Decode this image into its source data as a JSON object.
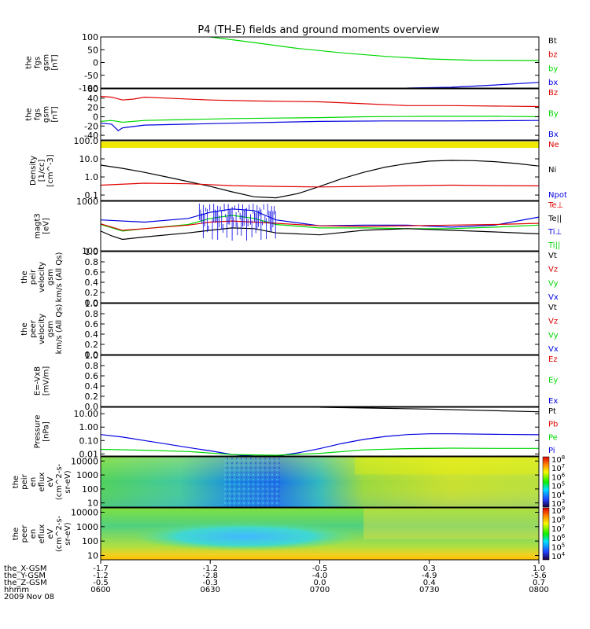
{
  "title": "P4 (TH-E) fields and ground moments overview",
  "colors": {
    "black": "#000000",
    "red": "#e00000",
    "green": "#00d800",
    "blue": "#0000e0",
    "yellow": "#f0e800",
    "bright_green": "#00ff00"
  },
  "chart_data": [
    {
      "type": "line",
      "panel": "fgs_gsm_1",
      "ylabel_lines": [
        "the",
        "fgs",
        "gsm",
        "[nT]"
      ],
      "ylim": [
        -100,
        100
      ],
      "yticks": [
        "100",
        "50",
        "0",
        "-50",
        "-100"
      ],
      "legend": [
        "Bt",
        "bz",
        "by",
        "bx"
      ],
      "x_hours": [
        6.0,
        6.5,
        7.0,
        7.5,
        8.0
      ],
      "series": [
        {
          "name": "by",
          "color": "green",
          "x": [
            6.5,
            6.7,
            6.9,
            7.1,
            7.3,
            7.5,
            7.7,
            8.0
          ],
          "y": [
            100,
            78,
            55,
            38,
            24,
            14,
            9,
            8
          ]
        },
        {
          "name": "bx",
          "color": "blue",
          "x": [
            7.4,
            7.6,
            7.8,
            8.0
          ],
          "y": [
            -100,
            -97,
            -88,
            -78
          ]
        }
      ]
    },
    {
      "type": "line",
      "panel": "fgs_gsm_2",
      "ylabel_lines": [
        "the",
        "fgs",
        "gsm",
        "[nT]"
      ],
      "ylim": [
        -50,
        60
      ],
      "yticks": [
        "60",
        "40",
        "20",
        "0",
        "-20",
        "-40"
      ],
      "legend": [
        "Bz",
        "By",
        "Bx"
      ],
      "series": [
        {
          "name": "Bz",
          "color": "red",
          "x": [
            6.0,
            6.05,
            6.1,
            6.15,
            6.2,
            6.3,
            6.5,
            6.7,
            7.0,
            7.2,
            7.4,
            7.6,
            8.0
          ],
          "y": [
            44,
            42,
            36,
            38,
            42,
            40,
            36,
            34,
            32,
            28,
            24,
            24,
            22
          ]
        },
        {
          "name": "By",
          "color": "green",
          "x": [
            6.0,
            6.05,
            6.1,
            6.2,
            6.4,
            6.6,
            6.8,
            7.0,
            7.2,
            7.5,
            7.8,
            8.0
          ],
          "y": [
            -10,
            -8,
            -12,
            -8,
            -6,
            -4,
            -3,
            -2,
            0,
            1,
            1,
            0
          ]
        },
        {
          "name": "Bx",
          "color": "blue",
          "x": [
            6.0,
            6.05,
            6.08,
            6.1,
            6.2,
            6.4,
            6.6,
            6.8,
            7.0,
            7.3,
            7.6,
            8.0
          ],
          "y": [
            -14,
            -16,
            -30,
            -24,
            -18,
            -16,
            -14,
            -12,
            -10,
            -9,
            -9,
            -8
          ]
        }
      ]
    },
    {
      "type": "line",
      "panel": "density",
      "ylabel_lines": [
        "Density",
        "[1/cc]",
        "[cm^-3]"
      ],
      "log": true,
      "ylim": [
        0.05,
        100
      ],
      "yticks": [
        "100.0",
        "10.0",
        "1.0",
        "0.1"
      ],
      "legend": [
        "Ne",
        "Ni",
        "Npot"
      ],
      "series": [
        {
          "name": "Ni",
          "color": "black",
          "x": [
            6.0,
            6.1,
            6.2,
            6.3,
            6.4,
            6.5,
            6.6,
            6.7,
            6.8,
            6.9,
            7.0,
            7.1,
            7.2,
            7.3,
            7.4,
            7.5,
            7.6,
            7.7,
            7.8,
            7.9,
            8.0
          ],
          "y": [
            4.5,
            3.0,
            1.8,
            1.0,
            0.55,
            0.3,
            0.15,
            0.08,
            0.07,
            0.12,
            0.3,
            0.8,
            1.8,
            3.5,
            5.5,
            7.5,
            8.2,
            8.0,
            7.0,
            5.5,
            4.0
          ]
        },
        {
          "name": "Ne",
          "color": "red",
          "x": [
            6.0,
            6.2,
            6.4,
            6.6,
            6.8,
            7.0,
            7.2,
            7.4,
            7.6,
            7.8,
            8.0
          ],
          "y": [
            0.35,
            0.45,
            0.42,
            0.33,
            0.3,
            0.28,
            0.3,
            0.33,
            0.35,
            0.33,
            0.32
          ]
        }
      ]
    },
    {
      "type": "line",
      "panel": "temperature",
      "ylabel_lines": [
        "magt3",
        "[eV]"
      ],
      "log": true,
      "ylim": [
        100,
        1000
      ],
      "yticks": [
        "1000",
        "100"
      ],
      "legend": [
        "Te⊥",
        "Te||",
        "Ti⊥",
        "Ti||"
      ],
      "series": [
        {
          "name": "Ti⊥",
          "color": "blue",
          "x": [
            6.0,
            6.2,
            6.4,
            6.5,
            6.6,
            6.7,
            6.8,
            7.0,
            7.2,
            7.4,
            7.6,
            7.8,
            8.0
          ],
          "y": [
            420,
            380,
            450,
            600,
            700,
            650,
            420,
            320,
            330,
            330,
            300,
            330,
            480
          ]
        },
        {
          "name": "Ti||",
          "color": "green",
          "x": [
            6.0,
            6.1,
            6.2,
            6.4,
            6.5,
            6.6,
            6.7,
            6.8,
            7.0,
            7.2,
            7.4,
            7.6,
            7.8,
            8.0
          ],
          "y": [
            340,
            250,
            280,
            340,
            450,
            520,
            450,
            340,
            290,
            290,
            280,
            280,
            300,
            330
          ]
        },
        {
          "name": "Te⊥",
          "color": "red",
          "x": [
            6.0,
            6.1,
            6.2,
            6.4,
            6.5,
            6.6,
            6.7,
            6.8,
            7.0,
            7.2,
            7.4,
            7.6,
            7.8,
            8.0
          ],
          "y": [
            350,
            260,
            280,
            330,
            380,
            400,
            380,
            360,
            320,
            310,
            320,
            330,
            340,
            360
          ]
        },
        {
          "name": "Te||",
          "color": "black",
          "x": [
            6.0,
            6.05,
            6.1,
            6.2,
            6.4,
            6.5,
            6.6,
            6.7,
            6.8,
            7.0,
            7.2,
            7.4,
            7.6,
            7.8,
            8.0
          ],
          "y": [
            250,
            200,
            170,
            190,
            230,
            260,
            290,
            280,
            230,
            210,
            260,
            280,
            260,
            240,
            220
          ]
        }
      ]
    },
    {
      "type": "line",
      "panel": "peir_velocity",
      "ylabel_lines": [
        "the",
        "peir",
        "velocity",
        "gsm",
        "km/s (All Qs)"
      ],
      "ylim": [
        0,
        1
      ],
      "yticks": [
        "1.0",
        "0.8",
        "0.6",
        "0.4",
        "0.2",
        "0.0"
      ],
      "legend": [
        "Vt",
        "Vz",
        "Vy",
        "Vx"
      ],
      "series": []
    },
    {
      "type": "line",
      "panel": "peer_velocity",
      "ylabel_lines": [
        "the",
        "peer",
        "velocity",
        "gsm",
        "km/s (All Qs)"
      ],
      "ylim": [
        0,
        1
      ],
      "yticks": [
        "1.0",
        "0.8",
        "0.6",
        "0.4",
        "0.2",
        "0.0"
      ],
      "legend": [
        "Vt",
        "Vz",
        "Vy",
        "Vx"
      ],
      "series": []
    },
    {
      "type": "line",
      "panel": "efield",
      "ylabel_lines": [
        "E=-VxB",
        "[mV/m]"
      ],
      "ylim": [
        0,
        1
      ],
      "yticks": [
        "1.0",
        "0.8",
        "0.6",
        "0.4",
        "0.2",
        "0.0"
      ],
      "legend": [
        "Ez",
        "Ey",
        "Ex"
      ],
      "series": []
    },
    {
      "type": "line",
      "panel": "pressure",
      "ylabel_lines": [
        "Pressure",
        "[nPa]"
      ],
      "log": true,
      "ylim": [
        0.007,
        30
      ],
      "yticks": [
        "10.00",
        "1.00",
        "0.10",
        "0.01"
      ],
      "legend": [
        "Pt",
        "Pb",
        "Pe",
        "Pi"
      ],
      "series": [
        {
          "name": "Pt",
          "color": "black",
          "x": [
            7.0,
            7.5,
            8.0
          ],
          "y": [
            30,
            22,
            14
          ]
        },
        {
          "name": "Pi",
          "color": "blue",
          "x": [
            6.0,
            6.1,
            6.2,
            6.3,
            6.4,
            6.5,
            6.6,
            6.7,
            6.8,
            6.9,
            7.0,
            7.1,
            7.2,
            7.3,
            7.4,
            7.5,
            7.6,
            7.8,
            8.0
          ],
          "y": [
            0.28,
            0.18,
            0.1,
            0.055,
            0.03,
            0.017,
            0.009,
            0.006,
            0.007,
            0.012,
            0.025,
            0.06,
            0.12,
            0.2,
            0.28,
            0.32,
            0.32,
            0.29,
            0.27
          ]
        },
        {
          "name": "Pe",
          "color": "green",
          "x": [
            6.0,
            6.2,
            6.4,
            6.6,
            6.8,
            7.0,
            7.2,
            7.4,
            7.6,
            7.8,
            8.0
          ],
          "y": [
            0.022,
            0.019,
            0.015,
            0.009,
            0.008,
            0.011,
            0.02,
            0.025,
            0.027,
            0.026,
            0.026
          ]
        }
      ]
    },
    {
      "type": "heatmap",
      "panel": "peir_en_eflux",
      "ylabel_lines": [
        "the",
        "peir",
        "en",
        "eflux",
        "eV",
        "(cm^2-s-",
        "sr-eV)"
      ],
      "log": true,
      "ylim": [
        5,
        20000
      ],
      "yticks": [
        "10000",
        "1000",
        "100",
        "10"
      ],
      "colorbar": {
        "ticks": [
          "10^8",
          "10^7",
          "10^6",
          "10^5",
          "10^4",
          "10^3"
        ]
      }
    },
    {
      "type": "heatmap",
      "panel": "peer_en_eflux",
      "ylabel_lines": [
        "the",
        "peer",
        "en",
        "eflux",
        "eV",
        "(cm^2-s-",
        "sr-eV)"
      ],
      "log": true,
      "ylim": [
        5,
        20000
      ],
      "yticks": [
        "10000",
        "1000",
        "100",
        "10"
      ],
      "colorbar": {
        "ticks": [
          "10^9",
          "10^8",
          "10^7",
          "10^6",
          "10^5",
          "10^4"
        ]
      }
    }
  ],
  "xaxis": {
    "row_labels": [
      "the_X-GSM",
      "the_Y-GSM",
      "the_Z-GSM",
      "hhmm",
      "2009 Nov 08"
    ],
    "columns": [
      {
        "vals": [
          "-1.7",
          "-1.2",
          "-0.5",
          "0600"
        ]
      },
      {
        "vals": [
          "-1.2",
          "-2.8",
          "-0.3",
          "0630"
        ]
      },
      {
        "vals": [
          "-0.5",
          "-4.0",
          "0.0",
          "0700"
        ]
      },
      {
        "vals": [
          "0.3",
          "-4.9",
          "0.4",
          "0730"
        ]
      },
      {
        "vals": [
          "1.0",
          "-5.6",
          "0.7",
          "0800"
        ]
      }
    ]
  }
}
